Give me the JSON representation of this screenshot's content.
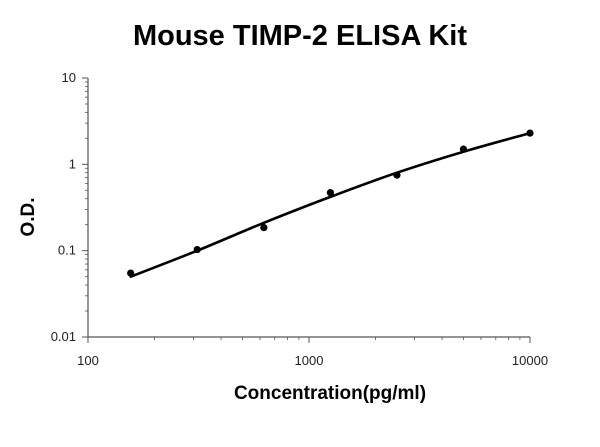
{
  "chart_data": {
    "type": "scatter",
    "title": "Mouse TIMP-2 ELISA Kit",
    "xlabel": "Concentration(pg/ml)",
    "ylabel": "O.D.",
    "x_scale": "log",
    "y_scale": "log",
    "xlim": [
      100,
      10000
    ],
    "ylim": [
      0.01,
      10
    ],
    "x_ticks": [
      "100",
      "1000",
      "10000"
    ],
    "y_ticks": [
      "10",
      "1",
      "0.1",
      "0.01"
    ],
    "grid": false,
    "series": [
      {
        "points": [
          {
            "x": 156,
            "y": 0.055
          },
          {
            "x": 312,
            "y": 0.103
          },
          {
            "x": 625,
            "y": 0.185
          },
          {
            "x": 1250,
            "y": 0.47
          },
          {
            "x": 2500,
            "y": 0.75
          },
          {
            "x": 5000,
            "y": 1.5
          },
          {
            "x": 10000,
            "y": 2.3
          }
        ]
      }
    ],
    "trendline": {
      "type": "polynomial fit",
      "points": [
        {
          "x": 156,
          "y": 0.05
        },
        {
          "x": 312,
          "y": 0.1
        },
        {
          "x": 625,
          "y": 0.21
        },
        {
          "x": 1250,
          "y": 0.42
        },
        {
          "x": 2500,
          "y": 0.8
        },
        {
          "x": 5000,
          "y": 1.4
        },
        {
          "x": 10000,
          "y": 2.3
        }
      ]
    },
    "colors": {
      "marker": "#000000",
      "line": "#000000",
      "axis": "#555555"
    }
  }
}
